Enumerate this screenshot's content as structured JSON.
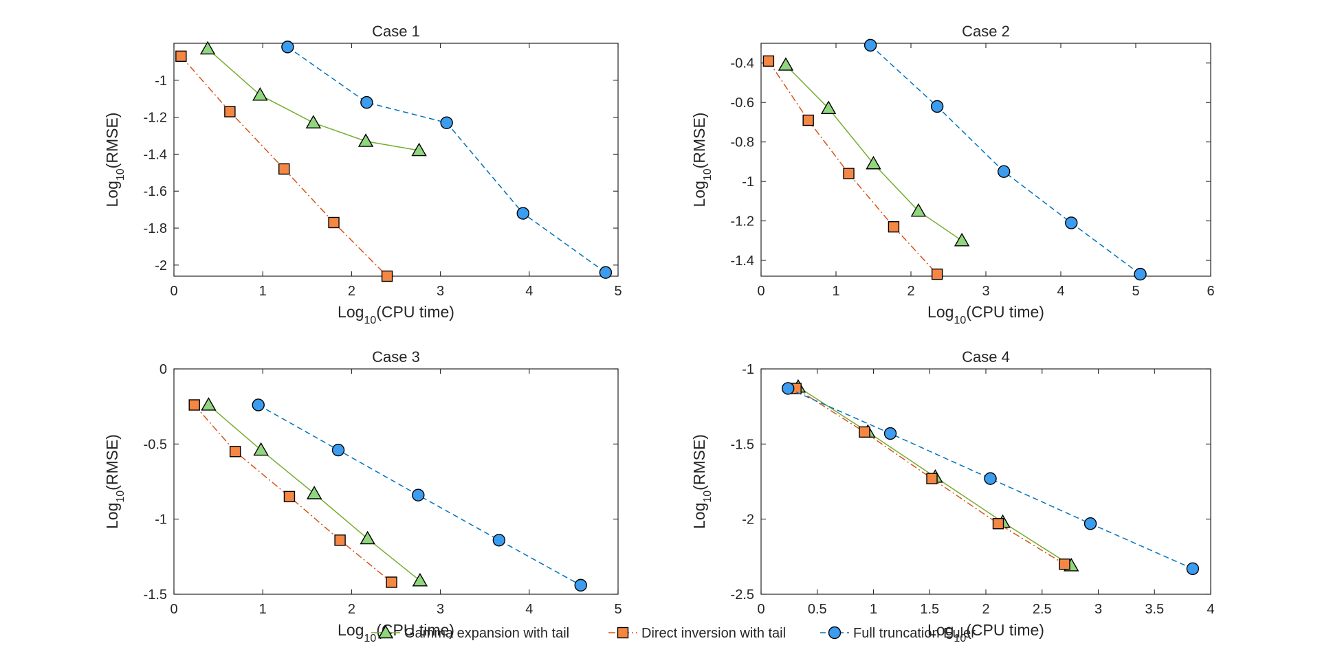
{
  "figure_title": "",
  "colors": {
    "gamma": "#77ac30",
    "gamma_fill": "#90d67e",
    "direct": "#d95319",
    "direct_fill": "#f58744",
    "euler": "#0072bd",
    "euler_fill": "#3c9cef",
    "axis": "#262626",
    "marker_edge": "#000000"
  },
  "legend": {
    "placement": "bottom-center",
    "items": [
      {
        "label": "Gamma expansion with tail",
        "series": "gamma",
        "marker": "triangle",
        "line": "solid"
      },
      {
        "label": "Direct inversion with tail",
        "series": "direct",
        "marker": "square",
        "line": "dash-dot"
      },
      {
        "label": "Full truncation Euler",
        "series": "euler",
        "marker": "circle",
        "line": "dashed"
      }
    ]
  },
  "chart_data": [
    {
      "type": "line",
      "title": "Case 1",
      "xlabel": {
        "base": "Log",
        "sub": "10",
        "rest": "(CPU time)"
      },
      "ylabel": {
        "base": "Log",
        "sub": "10",
        "rest": "(RMSE)"
      },
      "xlim": [
        0,
        5
      ],
      "ylim": [
        -2.06,
        -0.8
      ],
      "xticks": [
        0,
        1,
        2,
        3,
        4,
        5
      ],
      "xtick_labels": [
        "0",
        "1",
        "2",
        "3",
        "4",
        "5"
      ],
      "yticks": [
        -2,
        -1.8,
        -1.6,
        -1.4,
        -1.2,
        -1
      ],
      "ytick_labels": [
        "-2",
        "-1.8",
        "-1.6",
        "-1.4",
        "-1.2",
        "-1"
      ],
      "grid": false,
      "series": [
        {
          "name": "Gamma expansion with tail",
          "key": "gamma",
          "x": [
            0.38,
            0.97,
            1.57,
            2.16,
            2.76
          ],
          "y": [
            -0.83,
            -1.08,
            -1.23,
            -1.33,
            -1.38
          ]
        },
        {
          "name": "Direct inversion with tail",
          "key": "direct",
          "x": [
            0.08,
            0.63,
            1.24,
            1.8,
            2.4
          ],
          "y": [
            -0.87,
            -1.17,
            -1.48,
            -1.77,
            -2.06
          ]
        },
        {
          "name": "Full truncation Euler",
          "key": "euler",
          "x": [
            1.28,
            2.17,
            3.07,
            3.93,
            4.86
          ],
          "y": [
            -0.82,
            -1.12,
            -1.23,
            -1.72,
            -2.04
          ]
        }
      ]
    },
    {
      "type": "line",
      "title": "Case 2",
      "xlabel": {
        "base": "Log",
        "sub": "10",
        "rest": "(CPU time)"
      },
      "ylabel": {
        "base": "Log",
        "sub": "10",
        "rest": "(RMSE)"
      },
      "xlim": [
        0,
        6
      ],
      "ylim": [
        -1.48,
        -0.3
      ],
      "xticks": [
        0,
        1,
        2,
        3,
        4,
        5,
        6
      ],
      "xtick_labels": [
        "0",
        "1",
        "2",
        "3",
        "4",
        "5",
        "6"
      ],
      "yticks": [
        -1.4,
        -1.2,
        -1,
        -0.8,
        -0.6,
        -0.4
      ],
      "ytick_labels": [
        "-1.4",
        "-1.2",
        "-1",
        "-0.8",
        "-0.6",
        "-0.4"
      ],
      "grid": false,
      "series": [
        {
          "name": "Gamma expansion with tail",
          "key": "gamma",
          "x": [
            0.33,
            0.9,
            1.5,
            2.1,
            2.68
          ],
          "y": [
            -0.41,
            -0.63,
            -0.91,
            -1.15,
            -1.3
          ]
        },
        {
          "name": "Direct inversion with tail",
          "key": "direct",
          "x": [
            0.1,
            0.63,
            1.17,
            1.77,
            2.35
          ],
          "y": [
            -0.39,
            -0.69,
            -0.96,
            -1.23,
            -1.47
          ]
        },
        {
          "name": "Full truncation Euler",
          "key": "euler",
          "x": [
            1.46,
            2.35,
            3.24,
            4.14,
            5.06
          ],
          "y": [
            -0.31,
            -0.62,
            -0.95,
            -1.21,
            -1.47
          ]
        }
      ]
    },
    {
      "type": "line",
      "title": "Case 3",
      "xlabel": {
        "base": "Log",
        "sub": "10",
        "rest": "(CPU time)"
      },
      "ylabel": {
        "base": "Log",
        "sub": "10",
        "rest": "(RMSE)"
      },
      "xlim": [
        0,
        5
      ],
      "ylim": [
        -1.5,
        0
      ],
      "xticks": [
        0,
        1,
        2,
        3,
        4,
        5
      ],
      "xtick_labels": [
        "0",
        "1",
        "2",
        "3",
        "4",
        "5"
      ],
      "yticks": [
        -1.5,
        -1,
        -0.5,
        0
      ],
      "ytick_labels": [
        "-1.5",
        "-1",
        "-0.5",
        "0"
      ],
      "grid": false,
      "series": [
        {
          "name": "Gamma expansion with tail",
          "key": "gamma",
          "x": [
            0.39,
            0.98,
            1.58,
            2.18,
            2.77
          ],
          "y": [
            -0.24,
            -0.54,
            -0.83,
            -1.13,
            -1.41
          ]
        },
        {
          "name": "Direct inversion with tail",
          "key": "direct",
          "x": [
            0.23,
            0.69,
            1.3,
            1.87,
            2.45
          ],
          "y": [
            -0.24,
            -0.55,
            -0.85,
            -1.14,
            -1.42
          ]
        },
        {
          "name": "Full truncation Euler",
          "key": "euler",
          "x": [
            0.95,
            1.85,
            2.75,
            3.66,
            4.58
          ],
          "y": [
            -0.24,
            -0.54,
            -0.84,
            -1.14,
            -1.44
          ]
        }
      ]
    },
    {
      "type": "line",
      "title": "Case 4",
      "xlabel": {
        "base": "Log",
        "sub": "10",
        "rest": "(CPU time)"
      },
      "ylabel": {
        "base": "Log",
        "sub": "10",
        "rest": "(RMSE)"
      },
      "xlim": [
        0,
        4
      ],
      "ylim": [
        -2.5,
        -1
      ],
      "xticks": [
        0,
        0.5,
        1,
        1.5,
        2,
        2.5,
        3,
        3.5,
        4
      ],
      "xtick_labels": [
        "0",
        "0.5",
        "1",
        "1.5",
        "2",
        "2.5",
        "3",
        "3.5",
        "4"
      ],
      "yticks": [
        -2.5,
        -2,
        -1.5,
        -1
      ],
      "ytick_labels": [
        "-2.5",
        "-2",
        "-1.5",
        "-1"
      ],
      "grid": false,
      "series": [
        {
          "name": "Gamma expansion with tail",
          "key": "gamma",
          "x": [
            0.33,
            0.95,
            1.55,
            2.15,
            2.76
          ],
          "y": [
            -1.12,
            -1.42,
            -1.72,
            -2.02,
            -2.31
          ]
        },
        {
          "name": "Direct inversion with tail",
          "key": "direct",
          "x": [
            0.31,
            0.92,
            1.52,
            2.11,
            2.7
          ],
          "y": [
            -1.13,
            -1.42,
            -1.73,
            -2.03,
            -2.3
          ]
        },
        {
          "name": "Full truncation Euler",
          "key": "euler",
          "x": [
            0.24,
            1.15,
            2.04,
            2.93,
            3.84
          ],
          "y": [
            -1.13,
            -1.43,
            -1.73,
            -2.03,
            -2.33
          ]
        }
      ]
    }
  ]
}
